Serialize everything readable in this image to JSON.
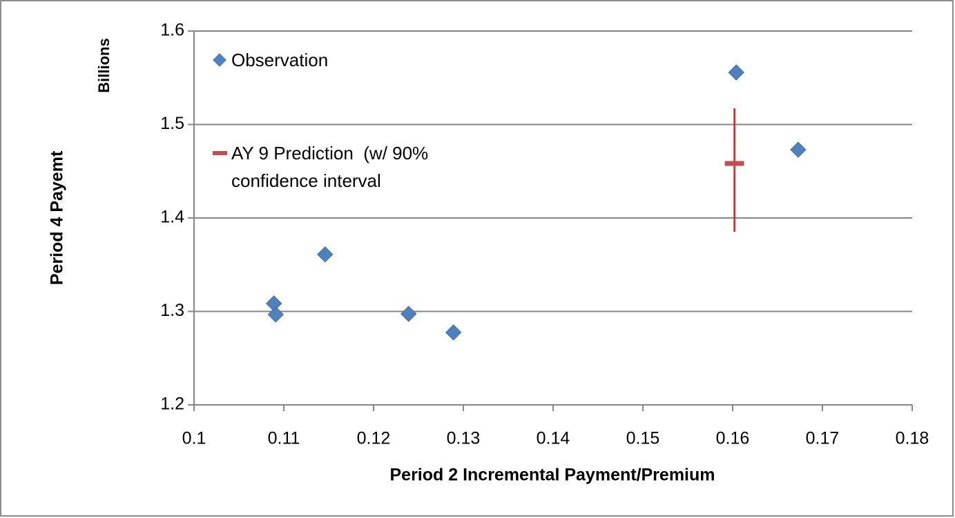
{
  "chart_data": {
    "type": "scatter",
    "xlabel": "Period 2 Incremental Payment/Premium",
    "ylabel": "Period 4 Payemt",
    "yunit": "Billions",
    "xlim": [
      0.1,
      0.18
    ],
    "xticks": [
      0.1,
      0.11,
      0.12,
      0.13,
      0.14,
      0.15,
      0.16,
      0.17,
      0.18
    ],
    "ylim": [
      1.2,
      1.6
    ],
    "yticks": [
      1.2,
      1.3,
      1.4,
      1.5,
      1.6
    ],
    "grid": true,
    "series": [
      {
        "name": "Observation",
        "color": "#4f81bd",
        "x": [
          0.1604,
          0.1673,
          0.1146,
          0.1089,
          0.1091,
          0.1239,
          0.1289
        ],
        "values": [
          1.5557,
          1.473,
          1.361,
          1.3085,
          1.2967,
          1.2974,
          1.2775
        ]
      },
      {
        "name": "AY 9 Prediction  (w/ 90% confidence interval",
        "color": "#c0504d",
        "x": [
          0.1602
        ],
        "values": [
          1.4583
        ],
        "lower": [
          1.3852
        ],
        "upper": [
          1.5173
        ]
      }
    ]
  }
}
